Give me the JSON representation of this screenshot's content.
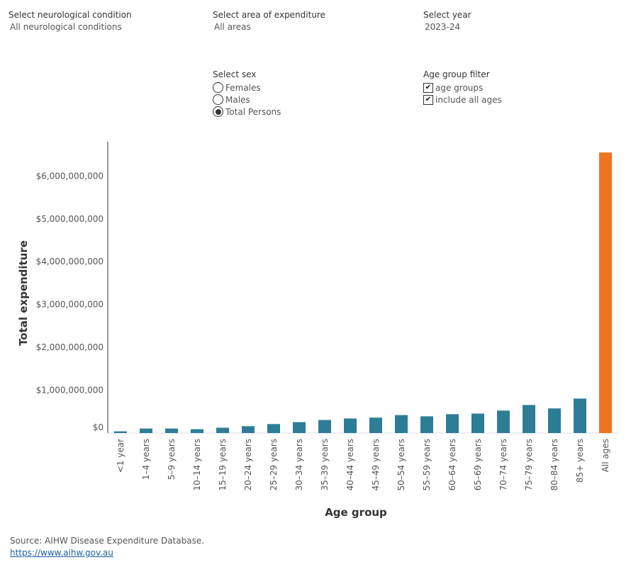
{
  "filters": {
    "condition": {
      "label": "Select neurological condition",
      "value": "All neurological conditions"
    },
    "area": {
      "label": "Select area of expenditure",
      "value": "All areas"
    },
    "year": {
      "label": "Select year",
      "value": "2023-24"
    },
    "sex": {
      "label": "Select sex",
      "options": [
        "Females",
        "Males",
        "Total Persons"
      ],
      "selected": "Total Persons"
    },
    "age_filter": {
      "label": "Age group filter",
      "options": [
        {
          "label": "age groups",
          "checked": true
        },
        {
          "label": "include all ages",
          "checked": true
        }
      ]
    }
  },
  "chart_data": {
    "type": "bar",
    "xlabel": "Age group",
    "ylabel": "Total expenditure",
    "ylim": [
      0,
      6800000000
    ],
    "yticks": [
      0,
      1000000000,
      2000000000,
      3000000000,
      4000000000,
      5000000000,
      6000000000
    ],
    "ytick_labels": [
      "$0",
      "$1,000,000,000",
      "$2,000,000,000",
      "$3,000,000,000",
      "$4,000,000,000",
      "$5,000,000,000",
      "$6,000,000,000"
    ],
    "grid": false,
    "categories": [
      "<1 year",
      "1–4 years",
      "5–9 years",
      "10–14 years",
      "15–19 years",
      "20–24 years",
      "25–29 years",
      "30–34 years",
      "35–39 years",
      "40–44 years",
      "45–49 years",
      "50–54 years",
      "55–59 years",
      "60–64 years",
      "65–69 years",
      "70–74 years",
      "75–79 years",
      "80–84 years",
      "85+ years",
      "All ages"
    ],
    "values": [
      40000000,
      105000000,
      105000000,
      90000000,
      125000000,
      160000000,
      210000000,
      255000000,
      305000000,
      340000000,
      360000000,
      420000000,
      390000000,
      440000000,
      455000000,
      525000000,
      655000000,
      575000000,
      805000000,
      6550000000
    ],
    "colors": {
      "age_groups": "#2e7d96",
      "all_ages": "#f07322"
    }
  },
  "source": {
    "text": "Source: AIHW Disease Expenditure Database.",
    "link": "https://www.aihw.gov.au"
  }
}
